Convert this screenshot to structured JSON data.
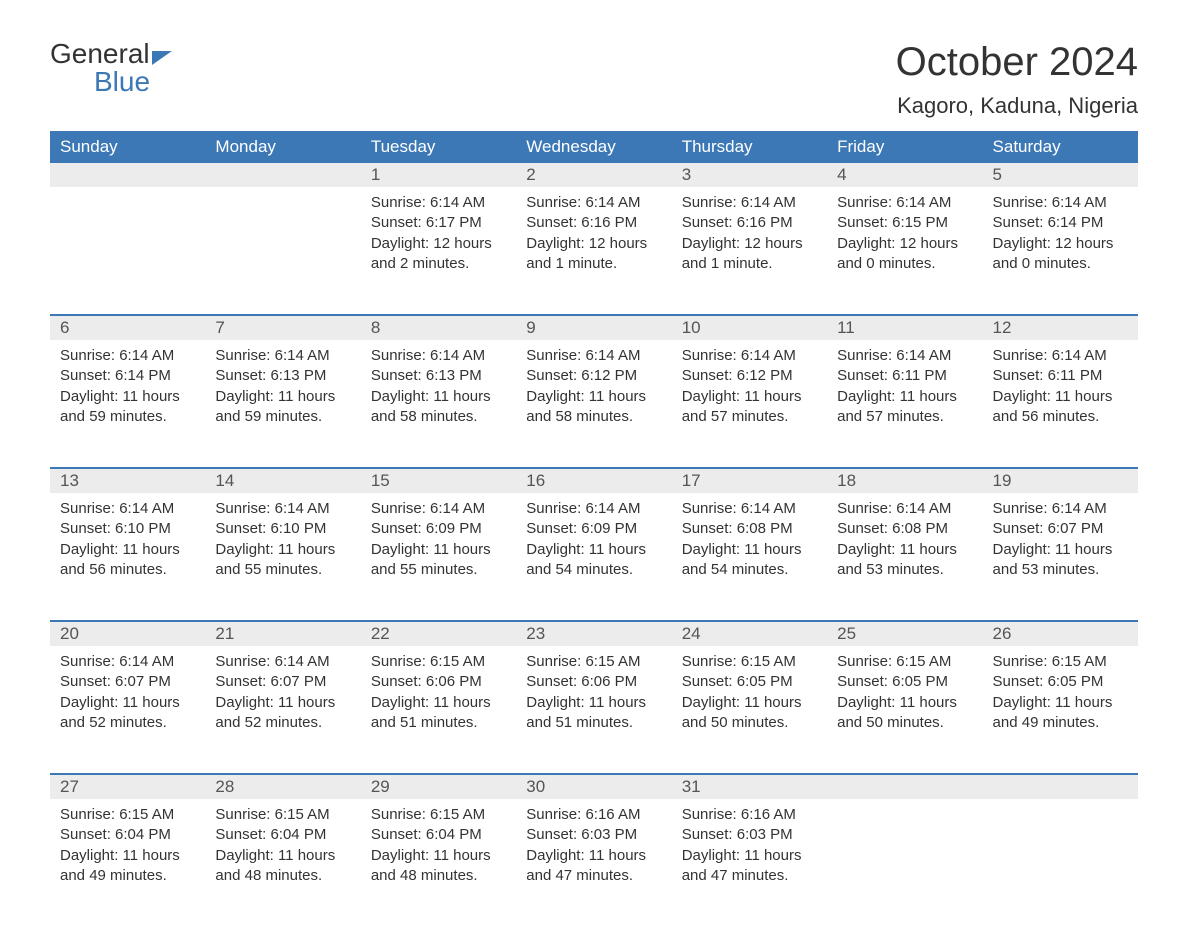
{
  "logo": {
    "line1": "General",
    "line2": "Blue"
  },
  "title": "October 2024",
  "location": "Kagoro, Kaduna, Nigeria",
  "colors": {
    "header_bg": "#3b78b5",
    "header_text": "#ffffff",
    "daynum_bg": "#ececec",
    "row_border": "#3b78b5",
    "body_text": "#333333"
  },
  "weekdays": [
    "Sunday",
    "Monday",
    "Tuesday",
    "Wednesday",
    "Thursday",
    "Friday",
    "Saturday"
  ],
  "weeks": [
    [
      null,
      null,
      {
        "n": "1",
        "sr": "Sunrise: 6:14 AM",
        "ss": "Sunset: 6:17 PM",
        "d1": "Daylight: 12 hours",
        "d2": "and 2 minutes."
      },
      {
        "n": "2",
        "sr": "Sunrise: 6:14 AM",
        "ss": "Sunset: 6:16 PM",
        "d1": "Daylight: 12 hours",
        "d2": "and 1 minute."
      },
      {
        "n": "3",
        "sr": "Sunrise: 6:14 AM",
        "ss": "Sunset: 6:16 PM",
        "d1": "Daylight: 12 hours",
        "d2": "and 1 minute."
      },
      {
        "n": "4",
        "sr": "Sunrise: 6:14 AM",
        "ss": "Sunset: 6:15 PM",
        "d1": "Daylight: 12 hours",
        "d2": "and 0 minutes."
      },
      {
        "n": "5",
        "sr": "Sunrise: 6:14 AM",
        "ss": "Sunset: 6:14 PM",
        "d1": "Daylight: 12 hours",
        "d2": "and 0 minutes."
      }
    ],
    [
      {
        "n": "6",
        "sr": "Sunrise: 6:14 AM",
        "ss": "Sunset: 6:14 PM",
        "d1": "Daylight: 11 hours",
        "d2": "and 59 minutes."
      },
      {
        "n": "7",
        "sr": "Sunrise: 6:14 AM",
        "ss": "Sunset: 6:13 PM",
        "d1": "Daylight: 11 hours",
        "d2": "and 59 minutes."
      },
      {
        "n": "8",
        "sr": "Sunrise: 6:14 AM",
        "ss": "Sunset: 6:13 PM",
        "d1": "Daylight: 11 hours",
        "d2": "and 58 minutes."
      },
      {
        "n": "9",
        "sr": "Sunrise: 6:14 AM",
        "ss": "Sunset: 6:12 PM",
        "d1": "Daylight: 11 hours",
        "d2": "and 58 minutes."
      },
      {
        "n": "10",
        "sr": "Sunrise: 6:14 AM",
        "ss": "Sunset: 6:12 PM",
        "d1": "Daylight: 11 hours",
        "d2": "and 57 minutes."
      },
      {
        "n": "11",
        "sr": "Sunrise: 6:14 AM",
        "ss": "Sunset: 6:11 PM",
        "d1": "Daylight: 11 hours",
        "d2": "and 57 minutes."
      },
      {
        "n": "12",
        "sr": "Sunrise: 6:14 AM",
        "ss": "Sunset: 6:11 PM",
        "d1": "Daylight: 11 hours",
        "d2": "and 56 minutes."
      }
    ],
    [
      {
        "n": "13",
        "sr": "Sunrise: 6:14 AM",
        "ss": "Sunset: 6:10 PM",
        "d1": "Daylight: 11 hours",
        "d2": "and 56 minutes."
      },
      {
        "n": "14",
        "sr": "Sunrise: 6:14 AM",
        "ss": "Sunset: 6:10 PM",
        "d1": "Daylight: 11 hours",
        "d2": "and 55 minutes."
      },
      {
        "n": "15",
        "sr": "Sunrise: 6:14 AM",
        "ss": "Sunset: 6:09 PM",
        "d1": "Daylight: 11 hours",
        "d2": "and 55 minutes."
      },
      {
        "n": "16",
        "sr": "Sunrise: 6:14 AM",
        "ss": "Sunset: 6:09 PM",
        "d1": "Daylight: 11 hours",
        "d2": "and 54 minutes."
      },
      {
        "n": "17",
        "sr": "Sunrise: 6:14 AM",
        "ss": "Sunset: 6:08 PM",
        "d1": "Daylight: 11 hours",
        "d2": "and 54 minutes."
      },
      {
        "n": "18",
        "sr": "Sunrise: 6:14 AM",
        "ss": "Sunset: 6:08 PM",
        "d1": "Daylight: 11 hours",
        "d2": "and 53 minutes."
      },
      {
        "n": "19",
        "sr": "Sunrise: 6:14 AM",
        "ss": "Sunset: 6:07 PM",
        "d1": "Daylight: 11 hours",
        "d2": "and 53 minutes."
      }
    ],
    [
      {
        "n": "20",
        "sr": "Sunrise: 6:14 AM",
        "ss": "Sunset: 6:07 PM",
        "d1": "Daylight: 11 hours",
        "d2": "and 52 minutes."
      },
      {
        "n": "21",
        "sr": "Sunrise: 6:14 AM",
        "ss": "Sunset: 6:07 PM",
        "d1": "Daylight: 11 hours",
        "d2": "and 52 minutes."
      },
      {
        "n": "22",
        "sr": "Sunrise: 6:15 AM",
        "ss": "Sunset: 6:06 PM",
        "d1": "Daylight: 11 hours",
        "d2": "and 51 minutes."
      },
      {
        "n": "23",
        "sr": "Sunrise: 6:15 AM",
        "ss": "Sunset: 6:06 PM",
        "d1": "Daylight: 11 hours",
        "d2": "and 51 minutes."
      },
      {
        "n": "24",
        "sr": "Sunrise: 6:15 AM",
        "ss": "Sunset: 6:05 PM",
        "d1": "Daylight: 11 hours",
        "d2": "and 50 minutes."
      },
      {
        "n": "25",
        "sr": "Sunrise: 6:15 AM",
        "ss": "Sunset: 6:05 PM",
        "d1": "Daylight: 11 hours",
        "d2": "and 50 minutes."
      },
      {
        "n": "26",
        "sr": "Sunrise: 6:15 AM",
        "ss": "Sunset: 6:05 PM",
        "d1": "Daylight: 11 hours",
        "d2": "and 49 minutes."
      }
    ],
    [
      {
        "n": "27",
        "sr": "Sunrise: 6:15 AM",
        "ss": "Sunset: 6:04 PM",
        "d1": "Daylight: 11 hours",
        "d2": "and 49 minutes."
      },
      {
        "n": "28",
        "sr": "Sunrise: 6:15 AM",
        "ss": "Sunset: 6:04 PM",
        "d1": "Daylight: 11 hours",
        "d2": "and 48 minutes."
      },
      {
        "n": "29",
        "sr": "Sunrise: 6:15 AM",
        "ss": "Sunset: 6:04 PM",
        "d1": "Daylight: 11 hours",
        "d2": "and 48 minutes."
      },
      {
        "n": "30",
        "sr": "Sunrise: 6:16 AM",
        "ss": "Sunset: 6:03 PM",
        "d1": "Daylight: 11 hours",
        "d2": "and 47 minutes."
      },
      {
        "n": "31",
        "sr": "Sunrise: 6:16 AM",
        "ss": "Sunset: 6:03 PM",
        "d1": "Daylight: 11 hours",
        "d2": "and 47 minutes."
      },
      null,
      null
    ]
  ]
}
